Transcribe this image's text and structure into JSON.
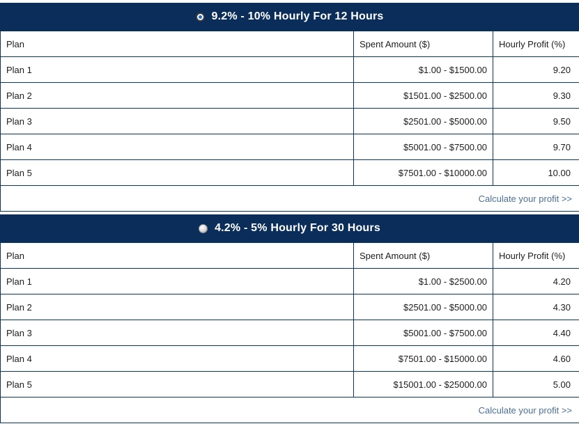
{
  "colors": {
    "header_bg": "#0a2d5a",
    "table_border": "#0a3561",
    "header_text": "#ffffff",
    "body_text": "#1c1c1c",
    "link": "#4a7096",
    "radio_dot": "#2b6cb8"
  },
  "sections": [
    {
      "title": "9.2% - 10% Hourly For 12 Hours",
      "selected": true,
      "columns": {
        "plan": "Plan",
        "amount": "Spent Amount ($)",
        "profit": "Hourly Profit (%)"
      },
      "rows": [
        {
          "plan": "Plan 1",
          "amount": "$1.00 - $1500.00",
          "profit": "9.20"
        },
        {
          "plan": "Plan 2",
          "amount": "$1501.00 - $2500.00",
          "profit": "9.30"
        },
        {
          "plan": "Plan 3",
          "amount": "$2501.00 - $5000.00",
          "profit": "9.50"
        },
        {
          "plan": "Plan 4",
          "amount": "$5001.00 - $7500.00",
          "profit": "9.70"
        },
        {
          "plan": "Plan 5",
          "amount": "$7501.00 - $10000.00",
          "profit": "10.00"
        }
      ],
      "footer_link": "Calculate your profit >>"
    },
    {
      "title": "4.2% - 5% Hourly For 30 Hours",
      "selected": false,
      "columns": {
        "plan": "Plan",
        "amount": "Spent Amount ($)",
        "profit": "Hourly Profit (%)"
      },
      "rows": [
        {
          "plan": "Plan 1",
          "amount": "$1.00 - $2500.00",
          "profit": "4.20"
        },
        {
          "plan": "Plan 2",
          "amount": "$2501.00 - $5000.00",
          "profit": "4.30"
        },
        {
          "plan": "Plan 3",
          "amount": "$5001.00 - $7500.00",
          "profit": "4.40"
        },
        {
          "plan": "Plan 4",
          "amount": "$7501.00 - $15000.00",
          "profit": "4.60"
        },
        {
          "plan": "Plan 5",
          "amount": "$15001.00 - $25000.00",
          "profit": "5.00"
        }
      ],
      "footer_link": "Calculate your profit >>"
    }
  ]
}
